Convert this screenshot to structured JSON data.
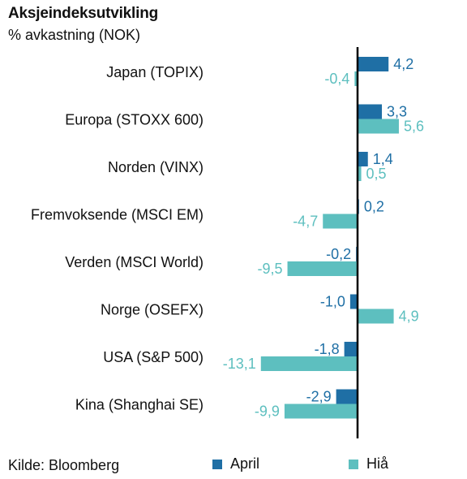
{
  "title": "Aksjeindeksutvikling",
  "subtitle": "% avkastning (NOK)",
  "source": "Kilde: Bloomberg",
  "colors": {
    "april": "#1f6fa5",
    "hia": "#5dbfbf"
  },
  "chart_data": {
    "type": "bar",
    "orientation": "horizontal",
    "categories": [
      "Japan (TOPIX)",
      "Europa (STOXX 600)",
      "Norden (VINX)",
      "Fremvoksende (MSCI EM)",
      "Verden (MSCI World)",
      "Norge (OSEFX)",
      "USA (S&P 500)",
      "Kina (Shanghai SE)"
    ],
    "series": [
      {
        "name": "April",
        "values": [
          4.2,
          3.3,
          1.4,
          0.2,
          -0.2,
          -1.0,
          -1.8,
          -2.9
        ],
        "labels": [
          "4,2",
          "3,3",
          "1,4",
          "0,2",
          "-0,2",
          "-1,0",
          "-1,8",
          "-2,9"
        ]
      },
      {
        "name": "Hiå",
        "values": [
          -0.4,
          5.6,
          0.5,
          -4.7,
          -9.5,
          4.9,
          -13.1,
          -9.9
        ],
        "labels": [
          "-0,4",
          "5,6",
          "0,5",
          "-4,7",
          "-9,5",
          "4,9",
          "-13,1",
          "-9,9"
        ]
      }
    ],
    "legend_position": "bottom",
    "grid": false
  }
}
